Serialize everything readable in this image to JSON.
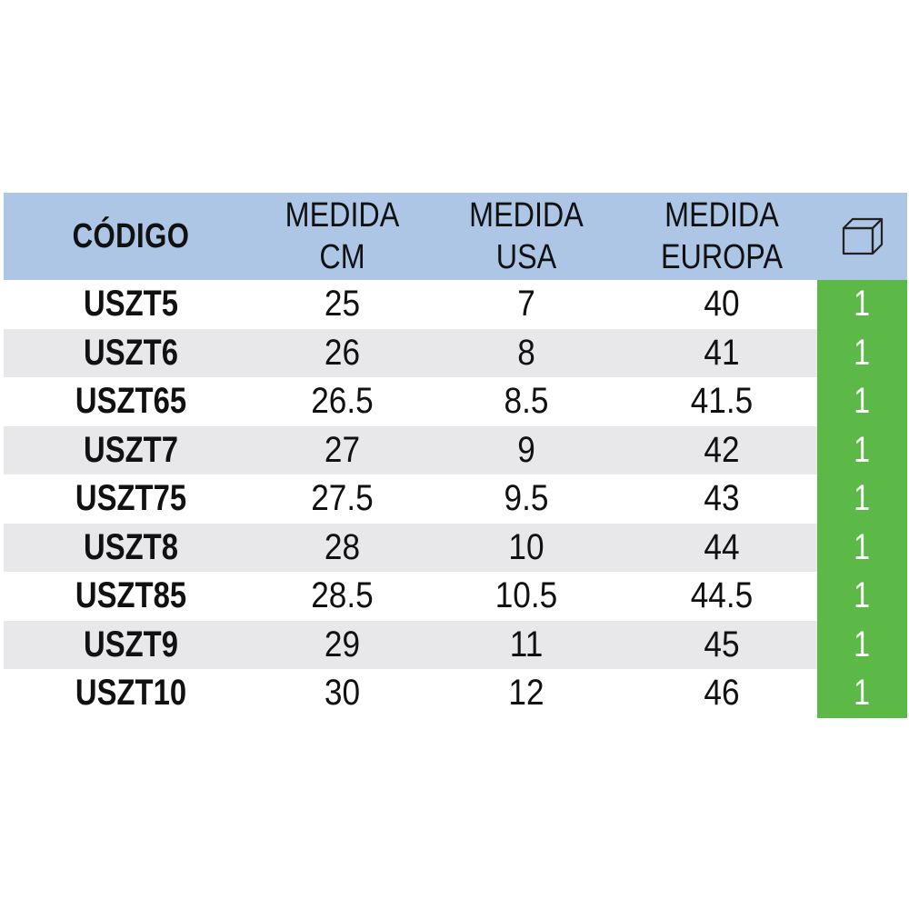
{
  "header": {
    "code": "CÓDIGO",
    "cm": [
      "MEDIDA",
      "CM"
    ],
    "usa": [
      "MEDIDA",
      "USA"
    ],
    "europa": [
      "MEDIDA",
      "EUROPA"
    ],
    "box_icon": "box-icon"
  },
  "rows": [
    {
      "code": "USZT5",
      "cm": "25",
      "usa": "7",
      "eu": "40",
      "qty": "1"
    },
    {
      "code": "USZT6",
      "cm": "26",
      "usa": "8",
      "eu": "41",
      "qty": "1"
    },
    {
      "code": "USZT65",
      "cm": "26.5",
      "usa": "8.5",
      "eu": "41.5",
      "qty": "1"
    },
    {
      "code": "USZT7",
      "cm": "27",
      "usa": "9",
      "eu": "42",
      "qty": "1"
    },
    {
      "code": "USZT75",
      "cm": "27.5",
      "usa": "9.5",
      "eu": "43",
      "qty": "1"
    },
    {
      "code": "USZT8",
      "cm": "28",
      "usa": "10",
      "eu": "44",
      "qty": "1"
    },
    {
      "code": "USZT85",
      "cm": "28.5",
      "usa": "10.5",
      "eu": "44.5",
      "qty": "1"
    },
    {
      "code": "USZT9",
      "cm": "29",
      "usa": "11",
      "eu": "45",
      "qty": "1"
    },
    {
      "code": "USZT10",
      "cm": "30",
      "usa": "12",
      "eu": "46",
      "qty": "1"
    }
  ],
  "colors": {
    "header_bg": "#adc6e6",
    "shaded_row": "#e8e8ea",
    "qty_green": "#5cb947"
  }
}
